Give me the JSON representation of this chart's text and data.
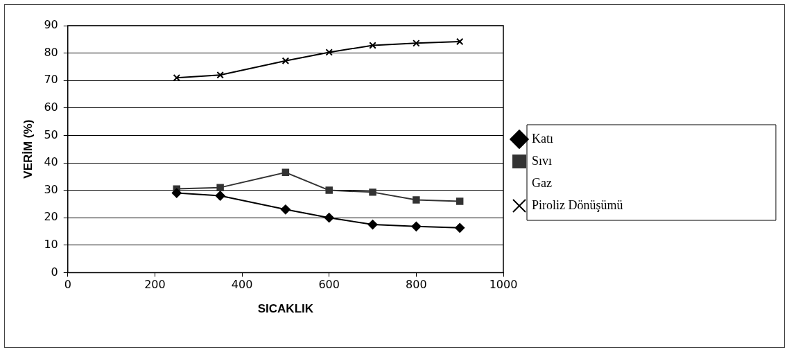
{
  "chart_data": {
    "type": "line",
    "xlabel": "SICAKLIK",
    "ylabel": "VERİM (%)",
    "x": [
      250,
      350,
      500,
      600,
      700,
      800,
      900
    ],
    "series": [
      {
        "name": "Katı",
        "color": "#000000",
        "marker": "diamond",
        "values": [
          29,
          28,
          23,
          20,
          17.5,
          16.8,
          16.3
        ]
      },
      {
        "name": "Sıvı",
        "color": "#333333",
        "marker": "square",
        "values": [
          30.5,
          31,
          36.5,
          30,
          29.3,
          26.5,
          26
        ]
      },
      {
        "name": "Gaz",
        "marker": "none",
        "values": [
          null,
          null,
          null,
          null,
          null,
          null,
          null
        ]
      },
      {
        "name": "Piroliz Dönüşümü",
        "color": "#000000",
        "marker": "cross",
        "values": [
          71,
          72,
          77.2,
          80.3,
          82.8,
          83.6,
          84.2
        ]
      }
    ],
    "xlim": [
      0,
      1000
    ],
    "xticks": [
      0,
      200,
      400,
      600,
      800,
      1000
    ],
    "ylim": [
      0,
      90
    ],
    "yticks": [
      0,
      10,
      20,
      30,
      40,
      50,
      60,
      70,
      80,
      90
    ],
    "grid": "y",
    "legend": "right",
    "line_style": "solid"
  }
}
